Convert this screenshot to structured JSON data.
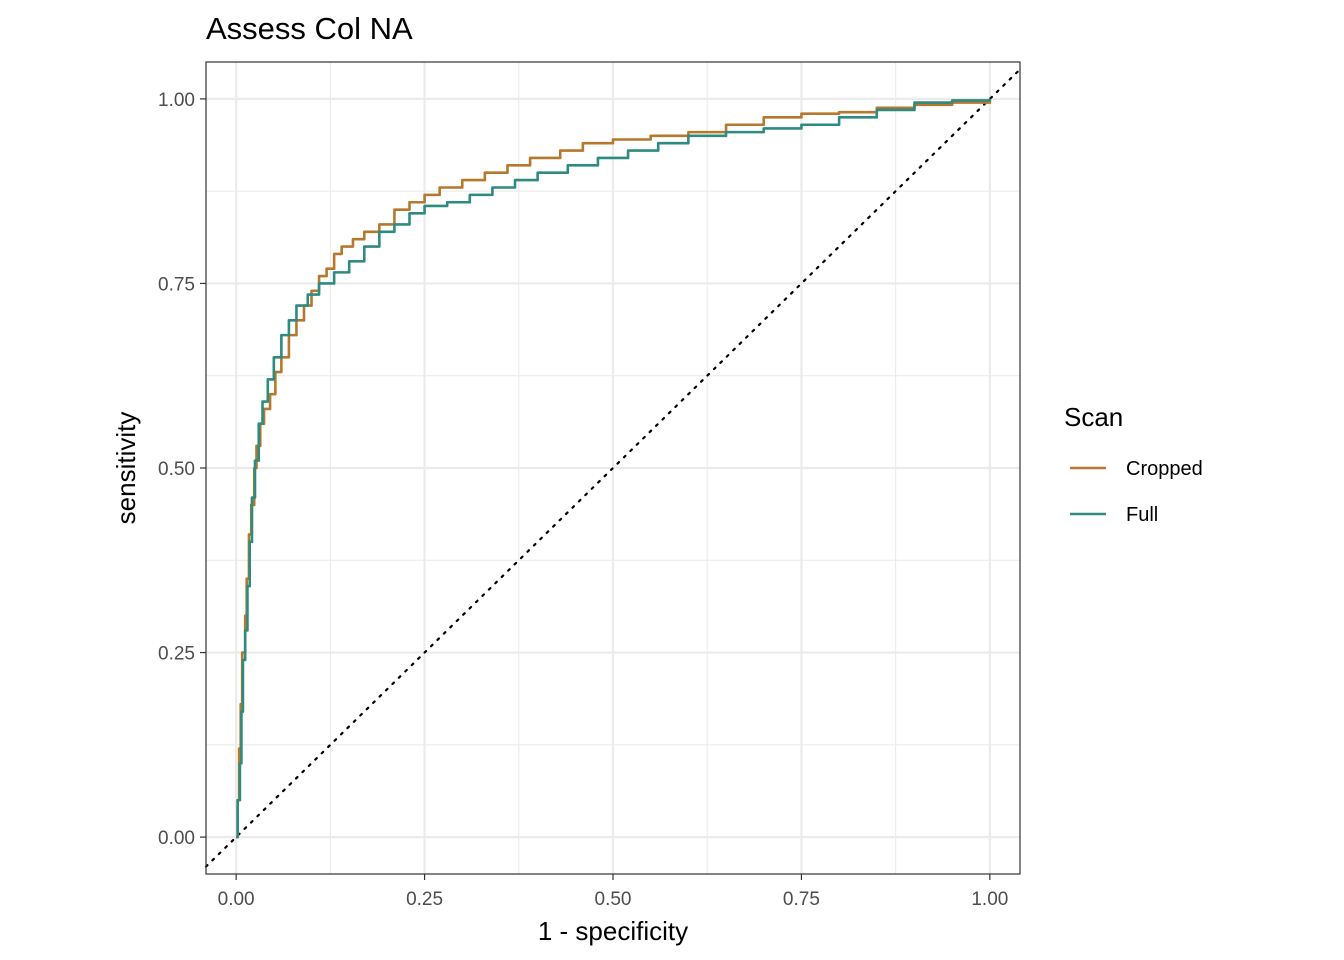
{
  "chart_data": {
    "type": "line",
    "title": "Assess Col NA",
    "xlabel": "1 - specificity",
    "ylabel": "sensitivity",
    "xlim": [
      -0.04,
      1.04
    ],
    "ylim": [
      -0.05,
      1.05
    ],
    "x_ticks": [
      0,
      0.25,
      0.5,
      0.75,
      1
    ],
    "x_tick_labels": [
      "0.00",
      "0.25",
      "0.50",
      "0.75",
      "1.00"
    ],
    "y_ticks": [
      0,
      0.25,
      0.5,
      0.75,
      1
    ],
    "y_tick_labels": [
      "0.00",
      "0.25",
      "0.50",
      "0.75",
      "1.00"
    ],
    "grid": true,
    "reference_line": {
      "from": [
        0,
        0
      ],
      "to": [
        1,
        1
      ],
      "style": "dotted",
      "color": "#000000"
    },
    "legend": {
      "title": "Scan",
      "position": "right"
    },
    "series": [
      {
        "name": "Cropped",
        "color": "#B5782C",
        "points": [
          [
            0,
            0
          ],
          [
            0.002,
            0.05
          ],
          [
            0.004,
            0.12
          ],
          [
            0.006,
            0.18
          ],
          [
            0.008,
            0.25
          ],
          [
            0.012,
            0.3
          ],
          [
            0.014,
            0.35
          ],
          [
            0.017,
            0.41
          ],
          [
            0.02,
            0.45
          ],
          [
            0.024,
            0.5
          ],
          [
            0.027,
            0.53
          ],
          [
            0.032,
            0.56
          ],
          [
            0.037,
            0.58
          ],
          [
            0.045,
            0.6
          ],
          [
            0.052,
            0.63
          ],
          [
            0.06,
            0.65
          ],
          [
            0.07,
            0.68
          ],
          [
            0.08,
            0.7
          ],
          [
            0.09,
            0.72
          ],
          [
            0.1,
            0.74
          ],
          [
            0.11,
            0.76
          ],
          [
            0.12,
            0.77
          ],
          [
            0.13,
            0.79
          ],
          [
            0.14,
            0.8
          ],
          [
            0.155,
            0.81
          ],
          [
            0.17,
            0.82
          ],
          [
            0.19,
            0.83
          ],
          [
            0.21,
            0.85
          ],
          [
            0.23,
            0.86
          ],
          [
            0.25,
            0.87
          ],
          [
            0.27,
            0.88
          ],
          [
            0.3,
            0.89
          ],
          [
            0.33,
            0.9
          ],
          [
            0.36,
            0.91
          ],
          [
            0.39,
            0.92
          ],
          [
            0.43,
            0.93
          ],
          [
            0.46,
            0.94
          ],
          [
            0.5,
            0.945
          ],
          [
            0.55,
            0.95
          ],
          [
            0.6,
            0.955
          ],
          [
            0.65,
            0.965
          ],
          [
            0.7,
            0.975
          ],
          [
            0.75,
            0.98
          ],
          [
            0.8,
            0.982
          ],
          [
            0.85,
            0.988
          ],
          [
            0.9,
            0.992
          ],
          [
            0.95,
            0.995
          ],
          [
            1.0,
            1.0
          ]
        ]
      },
      {
        "name": "Full",
        "color": "#2E8B80",
        "points": [
          [
            0,
            0
          ],
          [
            0.002,
            0.05
          ],
          [
            0.005,
            0.1
          ],
          [
            0.007,
            0.17
          ],
          [
            0.009,
            0.24
          ],
          [
            0.012,
            0.28
          ],
          [
            0.015,
            0.34
          ],
          [
            0.018,
            0.4
          ],
          [
            0.021,
            0.46
          ],
          [
            0.025,
            0.51
          ],
          [
            0.03,
            0.56
          ],
          [
            0.035,
            0.59
          ],
          [
            0.042,
            0.62
          ],
          [
            0.05,
            0.65
          ],
          [
            0.06,
            0.68
          ],
          [
            0.07,
            0.7
          ],
          [
            0.08,
            0.72
          ],
          [
            0.095,
            0.735
          ],
          [
            0.11,
            0.75
          ],
          [
            0.13,
            0.765
          ],
          [
            0.15,
            0.78
          ],
          [
            0.17,
            0.8
          ],
          [
            0.19,
            0.82
          ],
          [
            0.21,
            0.83
          ],
          [
            0.23,
            0.845
          ],
          [
            0.25,
            0.855
          ],
          [
            0.28,
            0.86
          ],
          [
            0.31,
            0.87
          ],
          [
            0.34,
            0.88
          ],
          [
            0.37,
            0.89
          ],
          [
            0.4,
            0.9
          ],
          [
            0.44,
            0.91
          ],
          [
            0.48,
            0.92
          ],
          [
            0.52,
            0.93
          ],
          [
            0.56,
            0.94
          ],
          [
            0.6,
            0.95
          ],
          [
            0.65,
            0.955
          ],
          [
            0.7,
            0.96
          ],
          [
            0.75,
            0.965
          ],
          [
            0.8,
            0.975
          ],
          [
            0.85,
            0.985
          ],
          [
            0.9,
            0.995
          ],
          [
            0.95,
            0.998
          ],
          [
            1.0,
            1.0
          ]
        ]
      }
    ]
  }
}
